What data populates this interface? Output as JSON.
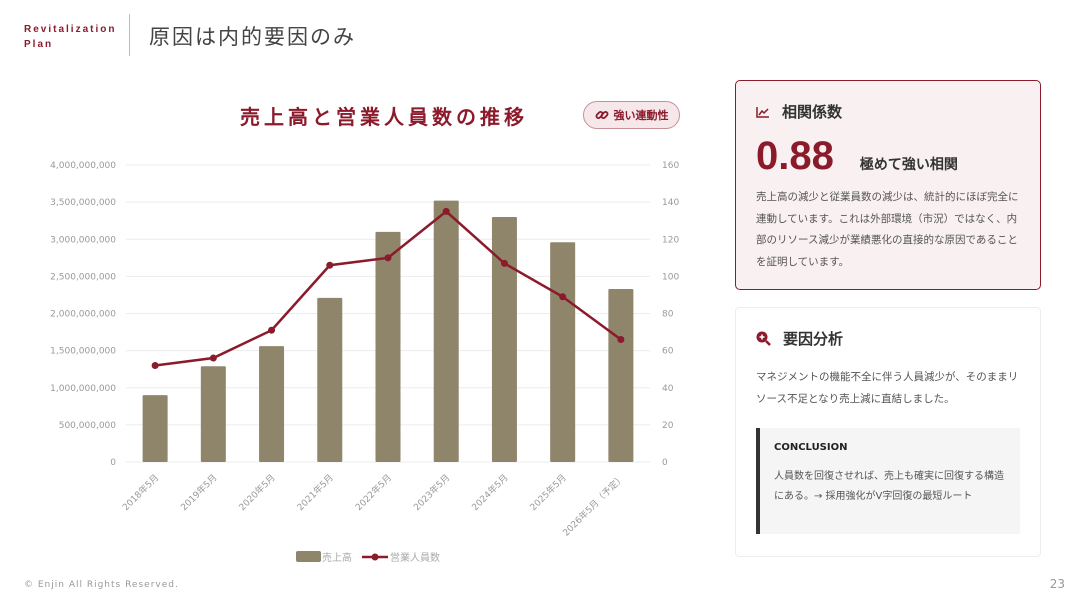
{
  "header": {
    "brand_line1": "Revitalization",
    "brand_line2": "Plan",
    "title": "原因は内的要因のみ"
  },
  "chart_badge": {
    "icon": "link-icon",
    "label": "強い連動性"
  },
  "chart_data": {
    "type": "bar",
    "title": "売上高と営業人員数の推移",
    "categories": [
      "2018年5月",
      "2019年5月",
      "2020年5月",
      "2021年5月",
      "2022年5月",
      "2023年5月",
      "2024年5月",
      "2025年5月",
      "2026年5月（予定）"
    ],
    "series": [
      {
        "name": "売上高",
        "type": "bar",
        "axis": "left",
        "color": "#8f856b",
        "values": [
          900000000,
          1290000000,
          1560000000,
          2210000000,
          3100000000,
          3520000000,
          3300000000,
          2960000000,
          2330000000
        ]
      },
      {
        "name": "営業人員数",
        "type": "line",
        "axis": "right",
        "color": "#8b1a2b",
        "values": [
          52,
          56,
          71,
          106,
          110,
          135,
          107,
          89,
          66
        ]
      }
    ],
    "left_axis": {
      "ylim": [
        0,
        4000000000
      ],
      "ticks": [
        "0",
        "500,000,000",
        "1,000,000,000",
        "1,500,000,000",
        "2,000,000,000",
        "2,500,000,000",
        "3,000,000,000",
        "3,500,000,000",
        "4,000,000,000"
      ]
    },
    "right_axis": {
      "ylim": [
        0,
        160
      ],
      "ticks": [
        "0",
        "20",
        "40",
        "60",
        "80",
        "100",
        "120",
        "140",
        "160"
      ]
    },
    "grid": true,
    "legend": "bottom"
  },
  "correlation": {
    "icon": "line-chart-icon",
    "title": "相関係数",
    "value": "0.88",
    "value_label": "極めて強い相関",
    "body": "売上高の減少と従業員数の減少は、統計的にほぼ完全に連動しています。これは外部環境（市況）ではなく、内部のリソース減少が業績悪化の直接的な原因であることを証明しています。"
  },
  "analysis": {
    "icon": "search-plus-icon",
    "title": "要因分析",
    "body": "マネジメントの機能不全に伴う人員減少が、そのままリソース不足となり売上減に直結しました。",
    "conclusion_title": "CONCLUSION",
    "conclusion_body": "人員数を回復させれば、売上も確実に回復する構造にある。→ 採用強化がV字回復の最短ルート"
  },
  "footer": {
    "copyright": "© Enjin All Rights Reserved.",
    "page": "23"
  },
  "colors": {
    "accent": "#8b1a2b",
    "bar": "#8f856b"
  }
}
